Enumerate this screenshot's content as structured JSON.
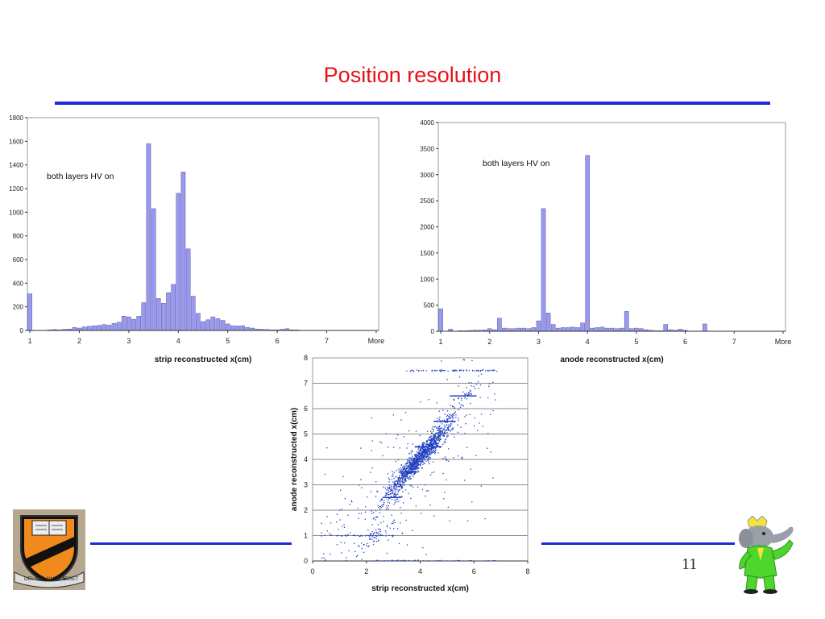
{
  "slide": {
    "title": "Position resolution",
    "page_number": "11",
    "accent_color": "#1a2bd8",
    "title_color": "#e8111a",
    "logos": [
      "princeton-shield-icon",
      "babar-elephant-icon"
    ],
    "shield_motto": [
      "DEI SUB NUMINE",
      "VIGET"
    ]
  },
  "chart_data": [
    {
      "type": "bar",
      "annotation": "both layers HV on",
      "xlabel": "strip reconstructed x(cm)",
      "ylabel": "",
      "ylim": [
        0,
        1800
      ],
      "yticks": [
        0,
        200,
        400,
        600,
        800,
        1000,
        1200,
        1400,
        1600,
        1800
      ],
      "xtick_labels": [
        "1",
        "2",
        "3",
        "4",
        "5",
        "6",
        "7",
        "More"
      ],
      "bar_color": "#9999ee",
      "bins": 71,
      "values": [
        310,
        0,
        0,
        0,
        5,
        8,
        5,
        10,
        12,
        25,
        20,
        30,
        35,
        40,
        42,
        50,
        45,
        60,
        70,
        120,
        115,
        95,
        120,
        235,
        1580,
        1030,
        270,
        230,
        320,
        390,
        1160,
        1340,
        690,
        290,
        145,
        75,
        90,
        115,
        100,
        85,
        55,
        40,
        38,
        40,
        25,
        20,
        12,
        10,
        8,
        5,
        5,
        10,
        15,
        5,
        5,
        0,
        0,
        0,
        0,
        0,
        0,
        0,
        0,
        0,
        0,
        0,
        0,
        0,
        0,
        0,
        0
      ]
    },
    {
      "type": "bar",
      "annotation": "both layers HV on",
      "xlabel": "anode reconstructed x(cm)",
      "ylabel": "",
      "ylim": [
        0,
        4000
      ],
      "yticks": [
        0,
        500,
        1000,
        1500,
        2000,
        2500,
        3000,
        3500,
        4000
      ],
      "xtick_labels": [
        "1",
        "2",
        "3",
        "4",
        "5",
        "6",
        "7",
        "More"
      ],
      "bar_color": "#9999ee",
      "bins": 71,
      "values": [
        430,
        0,
        40,
        0,
        10,
        10,
        15,
        20,
        20,
        25,
        50,
        30,
        250,
        60,
        50,
        50,
        60,
        60,
        50,
        70,
        200,
        2350,
        350,
        130,
        60,
        70,
        70,
        80,
        70,
        160,
        3370,
        60,
        70,
        80,
        60,
        60,
        50,
        60,
        380,
        50,
        60,
        50,
        30,
        20,
        10,
        10,
        130,
        30,
        20,
        40,
        20,
        0,
        5,
        5,
        140,
        0,
        0,
        0,
        0,
        0,
        0,
        0,
        0,
        0,
        0,
        0,
        0,
        0,
        0,
        0,
        0
      ]
    },
    {
      "type": "scatter",
      "xlabel": "strip reconstructed x(cm)",
      "ylabel": "anode reconstructed x(cm)",
      "xlim": [
        0,
        8
      ],
      "ylim": [
        0,
        8
      ],
      "xticks": [
        0,
        2,
        4,
        6,
        8
      ],
      "yticks": [
        0,
        1,
        2,
        3,
        4,
        5,
        6,
        7,
        8
      ],
      "point_color": "#1f3fbf",
      "clusters": [
        {
          "x": 3.55,
          "y": 3.5,
          "n": 320
        },
        {
          "x": 4.25,
          "y": 4.5,
          "n": 420
        },
        {
          "x": 3.0,
          "y": 2.5,
          "n": 50
        },
        {
          "x": 4.9,
          "y": 5.5,
          "n": 60
        },
        {
          "x": 5.6,
          "y": 6.5,
          "n": 35
        },
        {
          "x": 2.4,
          "y": 1.1,
          "n": 50
        },
        {
          "x": 4.0,
          "y": 4.0,
          "n": 350
        }
      ],
      "bands": [
        {
          "y": 7.5,
          "xmin": 3.5,
          "xmax": 6.9,
          "n": 70
        },
        {
          "y": 0.0,
          "xmin": 2.0,
          "xmax": 6.8,
          "n": 90
        },
        {
          "y": 1.0,
          "xmin": 0.2,
          "xmax": 3.0,
          "n": 40
        }
      ],
      "outliers": 300
    }
  ]
}
